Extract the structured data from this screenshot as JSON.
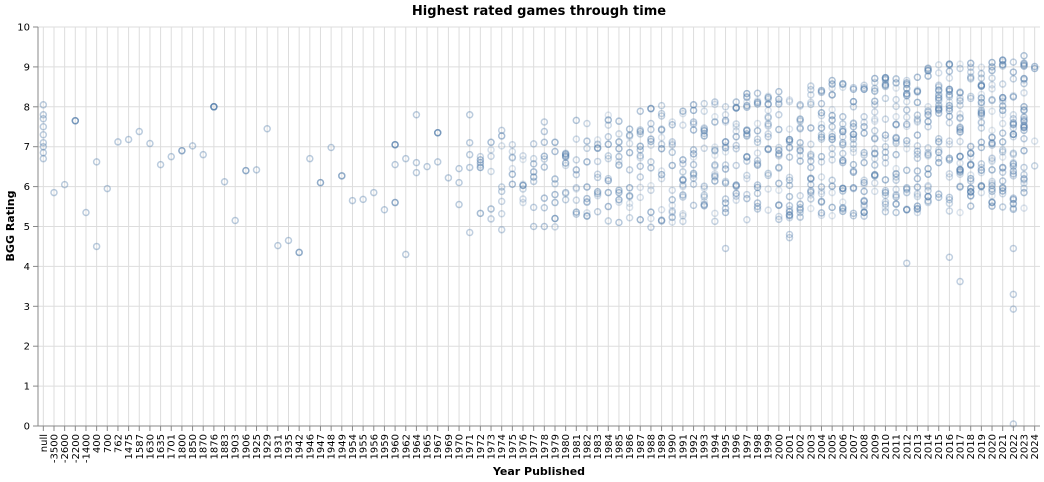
{
  "chart_data": {
    "type": "scatter",
    "title": "Highest rated games through time",
    "xlabel": "Year Published",
    "ylabel": "BGG Rating",
    "x_scale": "ordinal",
    "ylim": [
      0,
      10
    ],
    "y_ticks": [
      0,
      1,
      2,
      3,
      4,
      5,
      6,
      7,
      8,
      9,
      10
    ],
    "grid": true,
    "legend": "none",
    "point_color": "#4c78a8",
    "categories": [
      "null",
      "-3500",
      "-2600",
      "-2200",
      "-1400",
      "400",
      "700",
      "762",
      "1475",
      "1587",
      "1630",
      "1635",
      "1701",
      "1800",
      "1850",
      "1870",
      "1876",
      "1883",
      "1903",
      "1906",
      "1925",
      "1929",
      "1931",
      "1935",
      "1942",
      "1946",
      "1947",
      "1948",
      "1949",
      "1954",
      "1955",
      "1956",
      "1959",
      "1960",
      "1962",
      "1964",
      "1965",
      "1967",
      "1969",
      "1970",
      "1971",
      "1972",
      "1973",
      "1974",
      "1975",
      "1976",
      "1977",
      "1978",
      "1979",
      "1980",
      "1981",
      "1982",
      "1983",
      "1984",
      "1985",
      "1986",
      "1987",
      "1988",
      "1989",
      "1990",
      "1991",
      "1992",
      "1993",
      "1994",
      "1995",
      "1996",
      "1997",
      "1998",
      "1999",
      "2000",
      "2001",
      "2002",
      "2003",
      "2004",
      "2005",
      "2006",
      "2007",
      "2008",
      "2009",
      "2010",
      "2011",
      "2012",
      "2013",
      "2014",
      "2015",
      "2016",
      "2017",
      "2018",
      "2019",
      "2020",
      "2021",
      "2022",
      "2023",
      "2024"
    ],
    "explicit_points": [
      {
        "x": "null",
        "y": [
          6.7,
          6.85,
          7.0,
          7.1,
          7.3,
          7.5,
          7.7,
          7.8,
          8.05
        ]
      },
      {
        "x": "-3500",
        "y": [
          5.85
        ]
      },
      {
        "x": "-2600",
        "y": [
          6.05
        ]
      },
      {
        "x": "-2200",
        "y": [
          7.65,
          7.65,
          7.65
        ]
      },
      {
        "x": "-1400",
        "y": [
          5.35
        ]
      },
      {
        "x": "400",
        "y": [
          4.5,
          6.62
        ]
      },
      {
        "x": "700",
        "y": [
          5.95
        ]
      },
      {
        "x": "762",
        "y": [
          7.12
        ]
      },
      {
        "x": "1475",
        "y": [
          7.18
        ]
      },
      {
        "x": "1587",
        "y": [
          7.38
        ]
      },
      {
        "x": "1630",
        "y": [
          7.08
        ]
      },
      {
        "x": "1635",
        "y": [
          6.55
        ]
      },
      {
        "x": "1701",
        "y": [
          6.75
        ]
      },
      {
        "x": "1800",
        "y": [
          6.9,
          6.9
        ]
      },
      {
        "x": "1850",
        "y": [
          7.02
        ]
      },
      {
        "x": "1870",
        "y": [
          6.8
        ]
      },
      {
        "x": "1876",
        "y": [
          8.0,
          8.0,
          8.0,
          8.0
        ]
      },
      {
        "x": "1883",
        "y": [
          6.12
        ]
      },
      {
        "x": "1903",
        "y": [
          5.15
        ]
      },
      {
        "x": "1906",
        "y": [
          6.4,
          6.4
        ]
      },
      {
        "x": "1925",
        "y": [
          6.42
        ]
      },
      {
        "x": "1929",
        "y": [
          7.45
        ]
      },
      {
        "x": "1931",
        "y": [
          4.52
        ]
      },
      {
        "x": "1935",
        "y": [
          4.65
        ]
      },
      {
        "x": "1942",
        "y": [
          4.35,
          4.35
        ]
      },
      {
        "x": "1946",
        "y": [
          6.7
        ]
      },
      {
        "x": "1947",
        "y": [
          6.1,
          6.1
        ]
      },
      {
        "x": "1948",
        "y": [
          6.98
        ]
      },
      {
        "x": "1949",
        "y": [
          6.27,
          6.27
        ]
      },
      {
        "x": "1954",
        "y": [
          5.65
        ]
      },
      {
        "x": "1955",
        "y": [
          5.68
        ]
      },
      {
        "x": "1956",
        "y": [
          5.85
        ]
      },
      {
        "x": "1959",
        "y": [
          5.42
        ]
      },
      {
        "x": "1960",
        "y": [
          5.6,
          5.6,
          6.55,
          7.05,
          7.05,
          7.05
        ]
      },
      {
        "x": "1962",
        "y": [
          4.3,
          6.7
        ]
      },
      {
        "x": "1964",
        "y": [
          6.35,
          6.6,
          7.8
        ]
      },
      {
        "x": "1965",
        "y": [
          6.5
        ]
      },
      {
        "x": "1967",
        "y": [
          6.62,
          7.35,
          7.35,
          7.35
        ]
      },
      {
        "x": "1969",
        "y": [
          6.22
        ]
      },
      {
        "x": "1970",
        "y": [
          5.55,
          6.1,
          6.45
        ]
      },
      {
        "x": "1971",
        "y": [
          6.48,
          6.8,
          7.1,
          7.8
        ]
      }
    ],
    "summary": "Dense clusters of points for each year from 1972 through 2024; ratings mostly 5.5-8.5, rising over time to about 9.5 by 2022; outliers down to about 2.9-3.6 in 2017-2022 and one near 0 in 2022."
  }
}
